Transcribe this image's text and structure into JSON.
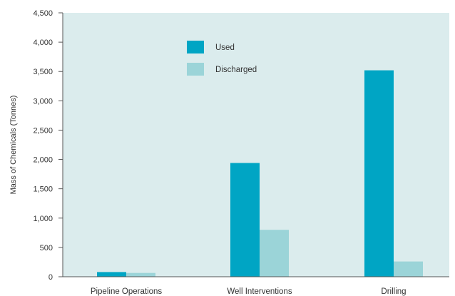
{
  "colors": {
    "plot_background": "#dbeced",
    "axis": "#555555",
    "used": "#00a5c4",
    "discharged": "#9bd4d8"
  },
  "chart_data": {
    "type": "bar",
    "ylabel": "Mass of Chemicals (Tonnes)",
    "xlabel": "",
    "ylim": [
      0,
      4500
    ],
    "yticks": [
      0,
      500,
      1000,
      1500,
      2000,
      2500,
      3000,
      3500,
      4000,
      4500
    ],
    "ytick_labels": [
      "0",
      "500",
      "1,000",
      "1,500",
      "2,000",
      "2,500",
      "3,000",
      "3,500",
      "4,000",
      "4,500"
    ],
    "categories": [
      "Pipeline Operations",
      "Well Interventions",
      "Drilling"
    ],
    "series": [
      {
        "name": "Used",
        "values": [
          80,
          1940,
          3520
        ]
      },
      {
        "name": "Discharged",
        "values": [
          65,
          800,
          260
        ]
      }
    ],
    "legend_position": "top-center",
    "grid": false
  }
}
